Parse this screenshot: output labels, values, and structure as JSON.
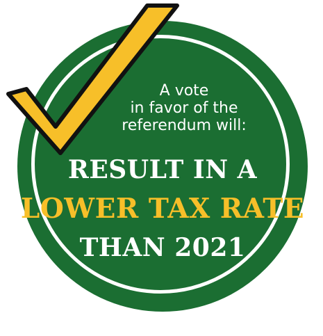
{
  "badge": {
    "intro_lines": [
      "A vote",
      "in favor of the",
      "referendum will:"
    ],
    "headline_line1": "RESULT IN A",
    "headline_line2": "LOWER TAX RATE",
    "headline_line3": "THAN 2021"
  },
  "colors": {
    "circle_green": "#1b6e32",
    "check_yellow": "#f7bf29",
    "outline_black": "#111111",
    "text_white": "#ffffff"
  },
  "icons": [
    "checkmark-icon"
  ]
}
